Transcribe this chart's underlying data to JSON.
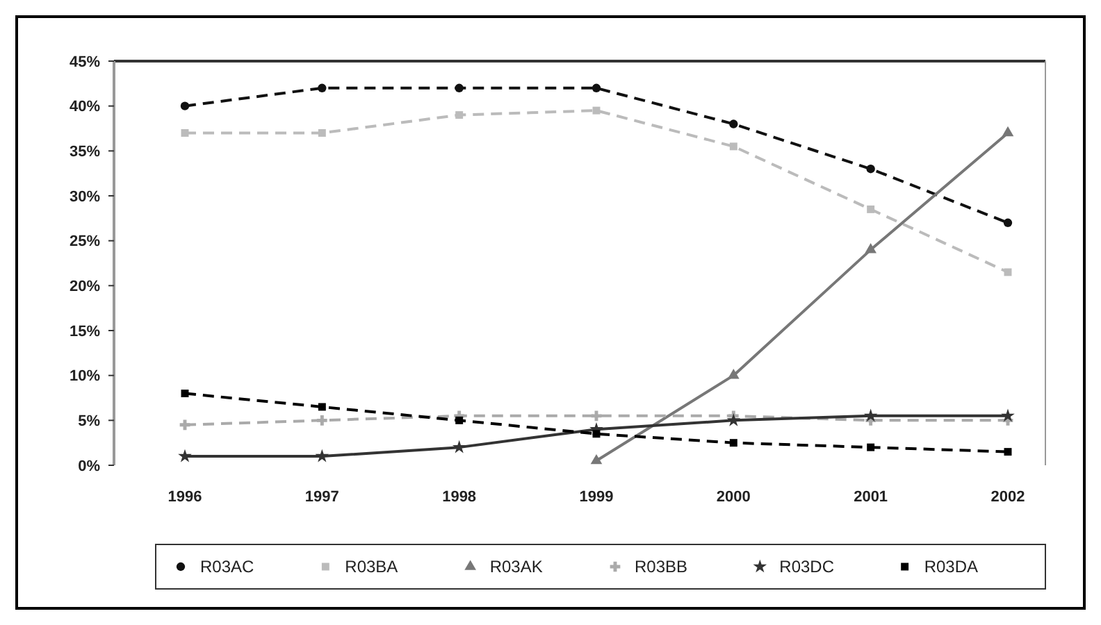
{
  "chart_data": {
    "type": "line",
    "categories": [
      "1996",
      "1997",
      "1998",
      "1999",
      "2000",
      "2001",
      "2002"
    ],
    "series": [
      {
        "name": "R03AC",
        "color": "#111111",
        "values": [
          40,
          42,
          42,
          42,
          38,
          33,
          27
        ],
        "marker": "circle",
        "line_style": "dashed"
      },
      {
        "name": "R03BA",
        "color": "#bbbbbb",
        "values": [
          37,
          37,
          39,
          39.5,
          35.5,
          28.5,
          21.5
        ],
        "marker": "square",
        "line_style": "dashed"
      },
      {
        "name": "R03AK",
        "color": "#777777",
        "values": [
          null,
          null,
          null,
          0.5,
          10,
          24,
          37
        ],
        "marker": "triangle",
        "line_style": "solid"
      },
      {
        "name": "R03BB",
        "color": "#aaaaaa",
        "values": [
          4.5,
          5,
          5.5,
          5.5,
          5.5,
          5,
          5
        ],
        "marker": "cross",
        "line_style": "dashed"
      },
      {
        "name": "R03DC",
        "color": "#333333",
        "values": [
          1,
          1,
          2,
          4,
          5,
          5.5,
          5.5
        ],
        "marker": "star",
        "line_style": "solid"
      },
      {
        "name": "R03DA",
        "color": "#000000",
        "values": [
          8,
          6.5,
          5,
          3.5,
          2.5,
          2,
          1.5
        ],
        "marker": "square",
        "line_style": "dashed"
      }
    ],
    "ylim": [
      0,
      45
    ],
    "yticks": [
      {
        "value": 0,
        "label": "0%"
      },
      {
        "value": 5,
        "label": "5%"
      },
      {
        "value": 10,
        "label": "10%"
      },
      {
        "value": 15,
        "label": "15%"
      },
      {
        "value": 20,
        "label": "20%"
      },
      {
        "value": 25,
        "label": "25%"
      },
      {
        "value": 30,
        "label": "30%"
      },
      {
        "value": 35,
        "label": "35%"
      },
      {
        "value": 40,
        "label": "40%"
      },
      {
        "value": 45,
        "label": "45%"
      }
    ],
    "grid": false,
    "legend": "bottom"
  }
}
